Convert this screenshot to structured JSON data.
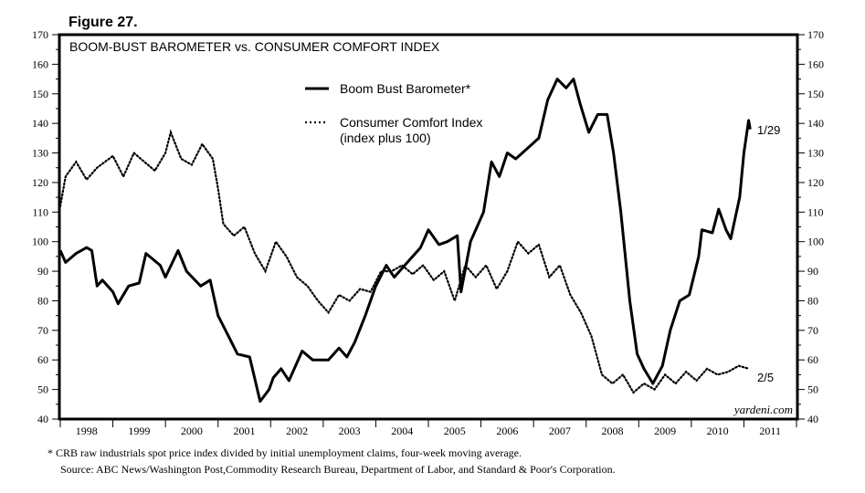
{
  "figure_label": "Figure 27.",
  "watermark": "yardeni.com",
  "footnotes": [
    "*  CRB raw industrials spot price index divided by initial unemployment claims, four-week moving average.",
    "Source: ABC News/Washington Post,Commodity Research Bureau, Department of Labor, and Standard & Poor's Corporation."
  ],
  "chart_data": {
    "type": "line",
    "title": "BOOM-BUST BAROMETER vs. CONSUMER COMFORT INDEX",
    "xlim": [
      1998,
      2012
    ],
    "ylim": [
      40,
      170
    ],
    "yticks": [
      40,
      50,
      60,
      70,
      80,
      90,
      100,
      110,
      120,
      130,
      140,
      150,
      160,
      170
    ],
    "xtick_labels": [
      "1998",
      "1999",
      "2000",
      "2001",
      "2002",
      "2003",
      "2004",
      "2005",
      "2006",
      "2007",
      "2008",
      "2009",
      "2010",
      "2011"
    ],
    "y_axis_both_sides": true,
    "grid": false,
    "legend_placement": "top-center",
    "series": [
      {
        "name": "Boom Bust Barometer*",
        "style": "solid-thick",
        "color": "#000000",
        "end_label": "1/29",
        "x": [
          1998.0,
          1998.1,
          1998.3,
          1998.5,
          1998.6,
          1998.7,
          1998.8,
          1999.0,
          1999.1,
          1999.3,
          1999.5,
          1999.63,
          1999.9,
          2000.0,
          2000.24,
          2000.4,
          2000.67,
          2000.85,
          2001.0,
          2001.2,
          2001.37,
          2001.6,
          2001.8,
          2001.97,
          2002.05,
          2002.2,
          2002.35,
          2002.6,
          2002.8,
          2003.1,
          2003.3,
          2003.45,
          2003.6,
          2003.8,
          2004.0,
          2004.2,
          2004.35,
          2004.6,
          2004.85,
          2005.0,
          2005.2,
          2005.36,
          2005.55,
          2005.62,
          2005.8,
          2006.05,
          2006.2,
          2006.35,
          2006.5,
          2006.66,
          2006.85,
          2007.1,
          2007.27,
          2007.45,
          2007.62,
          2007.76,
          2007.88,
          2008.05,
          2008.22,
          2008.4,
          2008.52,
          2008.66,
          2008.83,
          2008.97,
          2009.1,
          2009.27,
          2009.45,
          2009.6,
          2009.78,
          2009.96,
          2010.14,
          2010.2,
          2010.4,
          2010.52,
          2010.66,
          2010.75,
          2010.92,
          2011.0,
          2011.09,
          2011.12
        ],
        "y": [
          97,
          93,
          96,
          98,
          97,
          85,
          87,
          83,
          79,
          85,
          86,
          96,
          92,
          88,
          97,
          90,
          85,
          87,
          75,
          68,
          62,
          61,
          46,
          50,
          54,
          57,
          53,
          63,
          60,
          60,
          64,
          61,
          66,
          75,
          85,
          92,
          88,
          93,
          98,
          104,
          99,
          100,
          102,
          83,
          100,
          110,
          127,
          122,
          130,
          128,
          131,
          135,
          148,
          155,
          152,
          155,
          147,
          137,
          143,
          143,
          130,
          110,
          80,
          62,
          57,
          52,
          58,
          70,
          80,
          82,
          95,
          104,
          103,
          111,
          104,
          101,
          115,
          130,
          141,
          138
        ]
      },
      {
        "name": "Consumer Comfort Index (index plus 100)",
        "legend_lines": [
          "Consumer Comfort Index",
          "(index plus 100)"
        ],
        "style": "dotted",
        "color": "#000000",
        "end_label": "2/5",
        "x": [
          1998.0,
          1998.1,
          1998.3,
          1998.5,
          1998.7,
          1999.0,
          1999.2,
          1999.4,
          1999.6,
          1999.8,
          2000.0,
          2000.1,
          2000.3,
          2000.5,
          2000.7,
          2000.9,
          2001.0,
          2001.1,
          2001.3,
          2001.5,
          2001.7,
          2001.9,
          2002.1,
          2002.3,
          2002.5,
          2002.7,
          2002.9,
          2003.1,
          2003.3,
          2003.5,
          2003.7,
          2003.9,
          2004.1,
          2004.3,
          2004.5,
          2004.7,
          2004.9,
          2005.1,
          2005.3,
          2005.5,
          2005.7,
          2005.9,
          2006.1,
          2006.3,
          2006.5,
          2006.7,
          2006.9,
          2007.1,
          2007.3,
          2007.5,
          2007.7,
          2007.9,
          2008.1,
          2008.3,
          2008.5,
          2008.7,
          2008.9,
          2009.1,
          2009.3,
          2009.5,
          2009.7,
          2009.9,
          2010.1,
          2010.3,
          2010.5,
          2010.7,
          2010.9,
          2011.1
        ],
        "y": [
          112,
          122,
          127,
          121,
          125,
          129,
          122,
          130,
          127,
          124,
          130,
          137,
          128,
          126,
          133,
          128,
          118,
          106,
          102,
          105,
          96,
          90,
          100,
          95,
          88,
          85,
          80,
          76,
          82,
          80,
          84,
          83,
          90,
          90,
          92,
          89,
          92,
          87,
          90,
          80,
          92,
          88,
          92,
          84,
          90,
          100,
          96,
          99,
          88,
          92,
          82,
          76,
          68,
          55,
          52,
          55,
          49,
          52,
          50,
          55,
          52,
          56,
          53,
          57,
          55,
          56,
          58,
          57
        ]
      }
    ]
  }
}
